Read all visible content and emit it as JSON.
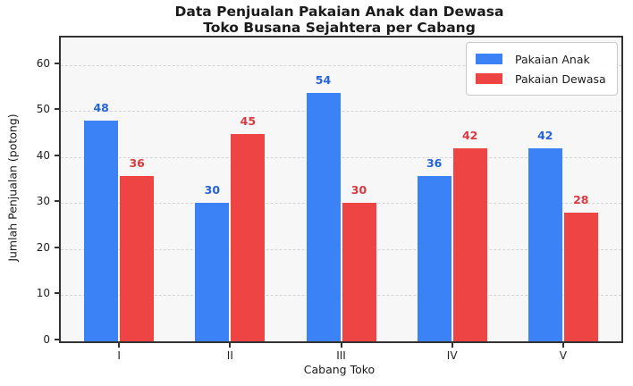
{
  "title": {
    "line1": "Data Penjualan Pakaian Anak dan Dewasa",
    "line2": "Toko Busana Sejahtera per Cabang"
  },
  "chart_data": {
    "type": "bar",
    "title": "Data Penjualan Pakaian Anak dan Dewasa Toko Busana Sejahtera per Cabang",
    "categories": [
      "I",
      "II",
      "III",
      "IV",
      "V"
    ],
    "series": [
      {
        "name": "Pakaian Anak",
        "color": "#3b82f6",
        "label_color": "#2563d6",
        "values": [
          48,
          30,
          54,
          36,
          42
        ]
      },
      {
        "name": "Pakaian Dewasa",
        "color": "#ef4444",
        "label_color": "#d93a40",
        "values": [
          36,
          45,
          30,
          42,
          28
        ]
      }
    ],
    "xlabel": "Cabang Toko",
    "ylabel": "Jumlah Penjualan (potong)",
    "ylim": [
      0,
      66
    ],
    "yticks": [
      0,
      10,
      20,
      30,
      40,
      50,
      60
    ],
    "grid": "horizontal-dashed",
    "bar_labels": true,
    "legend_position": "upper-right"
  },
  "colors": {
    "plot_background": "#f7f7f7",
    "figure_background": "#ffffff",
    "axis_border": "#333333",
    "gridline": "#d4d4d4",
    "text": "#1a1a1a"
  }
}
